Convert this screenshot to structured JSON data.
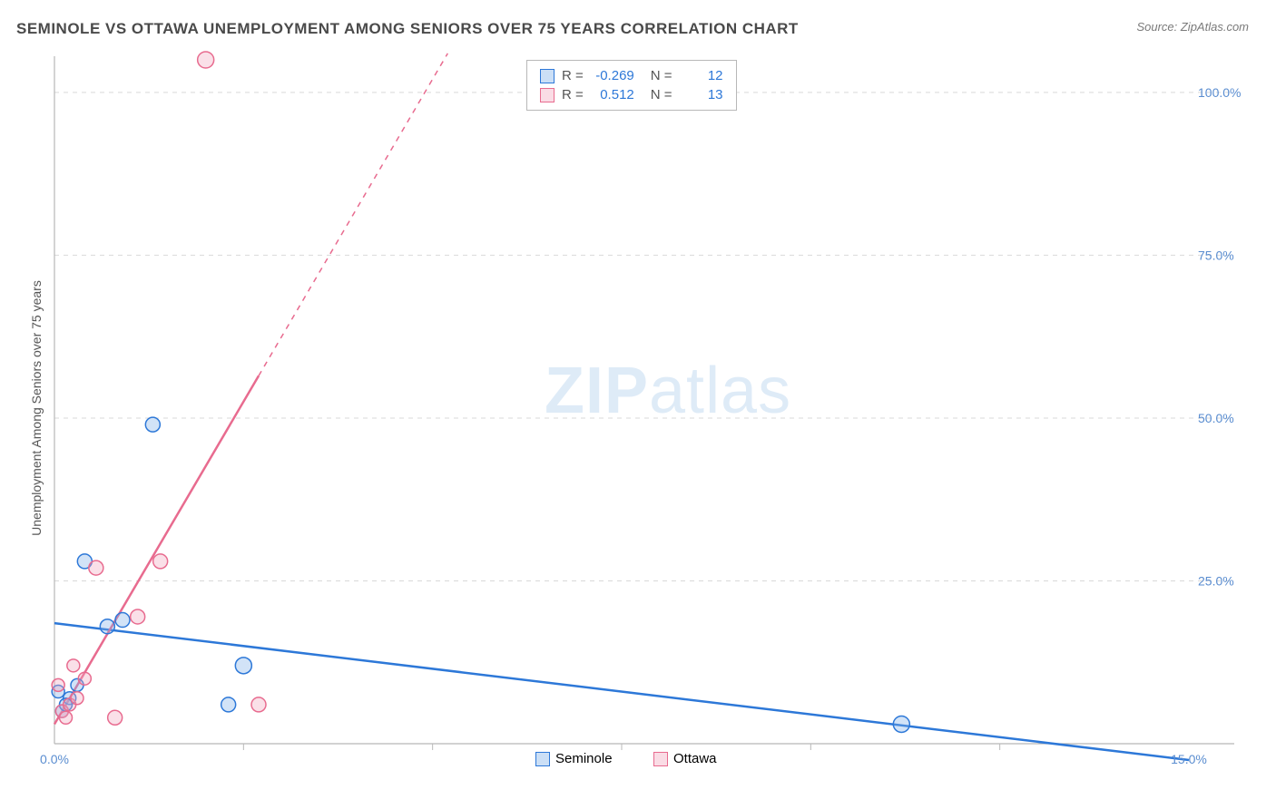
{
  "title": "SEMINOLE VS OTTAWA UNEMPLOYMENT AMONG SENIORS OVER 75 YEARS CORRELATION CHART",
  "source": "Source: ZipAtlas.com",
  "y_axis_label": "Unemployment Among Seniors over 75 years",
  "watermark_bold": "ZIP",
  "watermark_rest": "atlas",
  "chart": {
    "type": "scatter",
    "background_color": "#ffffff",
    "grid_color": "#d9d9d9",
    "axis_color": "#b8b8b8",
    "xlim": [
      0,
      15
    ],
    "ylim": [
      0,
      105
    ],
    "x_ticks": [
      {
        "v": 0,
        "label": "0.0%"
      },
      {
        "v": 15,
        "label": "15.0%"
      }
    ],
    "x_minor_ticks": [
      2.5,
      5.0,
      7.5,
      10.0,
      12.5
    ],
    "y_ticks": [
      {
        "v": 25,
        "label": "25.0%"
      },
      {
        "v": 50,
        "label": "50.0%"
      },
      {
        "v": 75,
        "label": "75.0%"
      },
      {
        "v": 100,
        "label": "100.0%"
      }
    ],
    "tick_color": "#5a8dd0",
    "tick_fontsize": 14,
    "series": [
      {
        "name": "Seminole",
        "color_stroke": "#2d78d8",
        "color_fill": "#7db0e8",
        "points": [
          {
            "x": 0.2,
            "y": 7,
            "r": 7
          },
          {
            "x": 0.1,
            "y": 5,
            "r": 7
          },
          {
            "x": 0.3,
            "y": 9,
            "r": 7
          },
          {
            "x": 0.05,
            "y": 8,
            "r": 7
          },
          {
            "x": 0.15,
            "y": 6,
            "r": 7
          },
          {
            "x": 0.7,
            "y": 18,
            "r": 8
          },
          {
            "x": 0.9,
            "y": 19,
            "r": 8
          },
          {
            "x": 0.4,
            "y": 28,
            "r": 8
          },
          {
            "x": 2.3,
            "y": 6,
            "r": 8
          },
          {
            "x": 2.5,
            "y": 12,
            "r": 9
          },
          {
            "x": 1.3,
            "y": 49,
            "r": 8
          },
          {
            "x": 11.2,
            "y": 3,
            "r": 9
          }
        ],
        "trend": {
          "x1": 0,
          "y1": 18.5,
          "x2": 15,
          "y2": -2.5,
          "solid_until_x": 15
        }
      },
      {
        "name": "Ottawa",
        "color_stroke": "#e86b8f",
        "color_fill": "#f2a7bd",
        "points": [
          {
            "x": 0.1,
            "y": 5,
            "r": 7
          },
          {
            "x": 0.05,
            "y": 9,
            "r": 7
          },
          {
            "x": 0.2,
            "y": 6,
            "r": 7
          },
          {
            "x": 0.3,
            "y": 7,
            "r": 7
          },
          {
            "x": 0.15,
            "y": 4,
            "r": 7
          },
          {
            "x": 0.4,
            "y": 10,
            "r": 7
          },
          {
            "x": 0.55,
            "y": 27,
            "r": 8
          },
          {
            "x": 0.8,
            "y": 4,
            "r": 8
          },
          {
            "x": 1.1,
            "y": 19.5,
            "r": 8
          },
          {
            "x": 1.4,
            "y": 28,
            "r": 8
          },
          {
            "x": 2.0,
            "y": 105,
            "r": 9
          },
          {
            "x": 2.7,
            "y": 6,
            "r": 8
          },
          {
            "x": 0.25,
            "y": 12,
            "r": 7
          }
        ],
        "trend": {
          "x1": 0,
          "y1": 3,
          "x2": 5.2,
          "y2": 106,
          "solid_until_x": 2.7
        }
      }
    ],
    "legend_bottom": [
      {
        "label": "Seminole",
        "stroke": "#2d78d8",
        "fill": "#7db0e8"
      },
      {
        "label": "Ottawa",
        "stroke": "#e86b8f",
        "fill": "#f2a7bd"
      }
    ],
    "stats": [
      {
        "swatch_stroke": "#2d78d8",
        "swatch_fill": "#7db0e8",
        "r_label": "R =",
        "r": "-0.269",
        "n_label": "N =",
        "n": "12"
      },
      {
        "swatch_stroke": "#e86b8f",
        "swatch_fill": "#f2a7bd",
        "r_label": "R =",
        "r": "0.512",
        "n_label": "N =",
        "n": "13"
      }
    ]
  }
}
